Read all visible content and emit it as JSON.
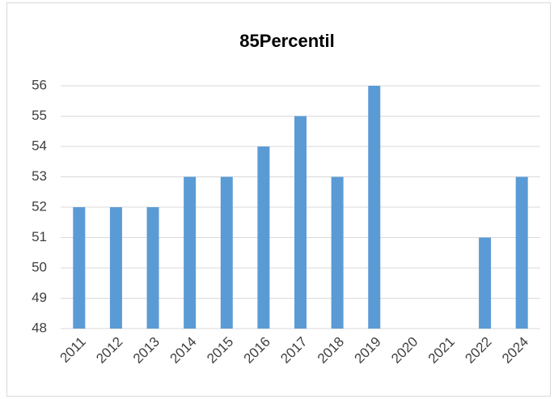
{
  "chart_data": {
    "type": "bar",
    "title": "85Percentil",
    "categories": [
      "2011",
      "2012",
      "2013",
      "2014",
      "2015",
      "2016",
      "2017",
      "2018",
      "2019",
      "2020",
      "2021",
      "2022",
      "2024"
    ],
    "values": [
      52,
      52,
      52,
      53,
      53,
      54,
      55,
      53,
      56,
      null,
      null,
      51,
      53
    ],
    "color": "#5b9bd5",
    "ylim": [
      48,
      56
    ],
    "yticks": [
      48,
      49,
      50,
      51,
      52,
      53,
      54,
      55,
      56
    ],
    "grid": true
  }
}
